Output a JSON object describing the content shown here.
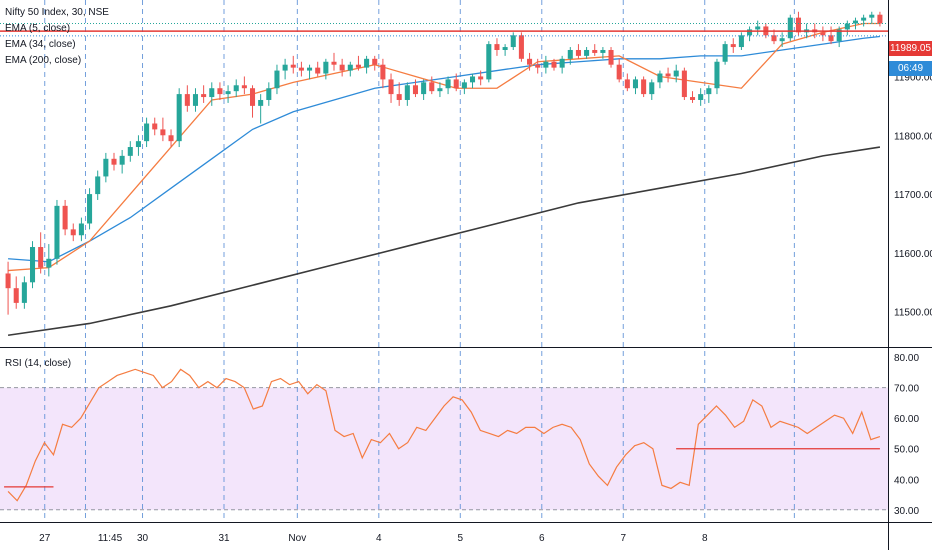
{
  "colors": {
    "up": "#26a69a",
    "down": "#ef5350",
    "ema5": "#f57c41",
    "ema34": "#2e8bd8",
    "ema200": "#3a3a3a",
    "rsi": "#f57c41",
    "rsi_band": "#f3e5fb",
    "grid": "#5b8fd6",
    "hline": "#e53935"
  },
  "legend": {
    "title": "Nifty 50 Index, 30, NSE",
    "ema5": "EMA (5, close)",
    "ema34": "EMA (34, close)",
    "ema200": "EMA (200, close)",
    "rsi": "RSI (14, close)"
  },
  "badges": {
    "price": "11989.05",
    "countdown": "06:49"
  },
  "chart_data": [
    {
      "type": "candlestick",
      "title": "Nifty 50 Index, 30, NSE",
      "y_ticks": [
        11500,
        11600,
        11700,
        11800,
        11900
      ],
      "y_tick_labels": [
        "11500.00",
        "11600.00",
        "11700.00",
        "11800.00",
        "11900.00"
      ],
      "ylim": [
        11440,
        12030
      ],
      "x_ticks": [
        "27",
        "11:45",
        "30",
        "31",
        "Nov",
        "4",
        "5",
        "6",
        "7",
        "8"
      ],
      "candles": [
        [
          11565,
          11585,
          11495,
          11540
        ],
        [
          11540,
          11560,
          11505,
          11515
        ],
        [
          11515,
          11560,
          11505,
          11550
        ],
        [
          11550,
          11620,
          11540,
          11610
        ],
        [
          11610,
          11635,
          11565,
          11575
        ],
        [
          11575,
          11615,
          11560,
          11590
        ],
        [
          11590,
          11690,
          11580,
          11680
        ],
        [
          11680,
          11690,
          11630,
          11640
        ],
        [
          11640,
          11650,
          11620,
          11630
        ],
        [
          11630,
          11660,
          11620,
          11650
        ],
        [
          11650,
          11710,
          11640,
          11700
        ],
        [
          11700,
          11740,
          11690,
          11730
        ],
        [
          11730,
          11770,
          11720,
          11760
        ],
        [
          11760,
          11770,
          11740,
          11750
        ],
        [
          11750,
          11775,
          11735,
          11765
        ],
        [
          11765,
          11790,
          11755,
          11780
        ],
        [
          11780,
          11800,
          11765,
          11790
        ],
        [
          11790,
          11830,
          11780,
          11820
        ],
        [
          11820,
          11830,
          11800,
          11810
        ],
        [
          11810,
          11830,
          11790,
          11800
        ],
        [
          11800,
          11810,
          11780,
          11790
        ],
        [
          11790,
          11880,
          11780,
          11870
        ],
        [
          11870,
          11885,
          11840,
          11850
        ],
        [
          11850,
          11880,
          11840,
          11870
        ],
        [
          11870,
          11885,
          11855,
          11865
        ],
        [
          11865,
          11890,
          11850,
          11880
        ],
        [
          11880,
          11890,
          11860,
          11870
        ],
        [
          11870,
          11885,
          11855,
          11875
        ],
        [
          11875,
          11895,
          11865,
          11885
        ],
        [
          11885,
          11900,
          11870,
          11880
        ],
        [
          11880,
          11885,
          11830,
          11850
        ],
        [
          11850,
          11870,
          11820,
          11860
        ],
        [
          11860,
          11890,
          11850,
          11880
        ],
        [
          11880,
          11920,
          11870,
          11910
        ],
        [
          11910,
          11930,
          11895,
          11920
        ],
        [
          11920,
          11935,
          11905,
          11915
        ],
        [
          11915,
          11925,
          11900,
          11910
        ],
        [
          11910,
          11920,
          11895,
          11915
        ],
        [
          11915,
          11925,
          11900,
          11905
        ],
        [
          11905,
          11930,
          11895,
          11925
        ],
        [
          11925,
          11940,
          11910,
          11920
        ],
        [
          11920,
          11930,
          11900,
          11910
        ],
        [
          11910,
          11925,
          11900,
          11920
        ],
        [
          11920,
          11935,
          11910,
          11915
        ],
        [
          11915,
          11935,
          11905,
          11930
        ],
        [
          11930,
          11935,
          11910,
          11920
        ],
        [
          11920,
          11930,
          11880,
          11895
        ],
        [
          11895,
          11905,
          11855,
          11870
        ],
        [
          11870,
          11890,
          11850,
          11860
        ],
        [
          11860,
          11890,
          11850,
          11885
        ],
        [
          11885,
          11895,
          11865,
          11870
        ],
        [
          11870,
          11895,
          11860,
          11890
        ],
        [
          11890,
          11900,
          11870,
          11875
        ],
        [
          11875,
          11890,
          11865,
          11880
        ],
        [
          11880,
          11900,
          11870,
          11895
        ],
        [
          11895,
          11905,
          11875,
          11880
        ],
        [
          11880,
          11895,
          11870,
          11890
        ],
        [
          11890,
          11905,
          11880,
          11900
        ],
        [
          11900,
          11910,
          11885,
          11895
        ],
        [
          11895,
          11960,
          11890,
          11955
        ],
        [
          11955,
          11965,
          11935,
          11945
        ],
        [
          11945,
          11955,
          11935,
          11950
        ],
        [
          11950,
          11975,
          11945,
          11970
        ],
        [
          11970,
          11975,
          11925,
          11930
        ],
        [
          11930,
          11940,
          11910,
          11920
        ],
        [
          11920,
          11930,
          11905,
          11915
        ],
        [
          11915,
          11935,
          11905,
          11925
        ],
        [
          11925,
          11930,
          11910,
          11915
        ],
        [
          11915,
          11935,
          11905,
          11930
        ],
        [
          11930,
          11950,
          11920,
          11945
        ],
        [
          11945,
          11955,
          11930,
          11935
        ],
        [
          11935,
          11950,
          11930,
          11945
        ],
        [
          11945,
          11955,
          11935,
          11940
        ],
        [
          11940,
          11950,
          11930,
          11945
        ],
        [
          11945,
          11950,
          11915,
          11920
        ],
        [
          11920,
          11930,
          11890,
          11895
        ],
        [
          11895,
          11905,
          11875,
          11880
        ],
        [
          11880,
          11900,
          11870,
          11895
        ],
        [
          11895,
          11900,
          11865,
          11870
        ],
        [
          11870,
          11895,
          11860,
          11890
        ],
        [
          11890,
          11910,
          11880,
          11905
        ],
        [
          11905,
          11915,
          11890,
          11900
        ],
        [
          11900,
          11920,
          11890,
          11910
        ],
        [
          11910,
          11915,
          11860,
          11865
        ],
        [
          11865,
          11875,
          11855,
          11860
        ],
        [
          11860,
          11880,
          11850,
          11870
        ],
        [
          11870,
          11885,
          11855,
          11880
        ],
        [
          11880,
          11930,
          11870,
          11925
        ],
        [
          11925,
          11960,
          11920,
          11955
        ],
        [
          11955,
          11965,
          11940,
          11950
        ],
        [
          11950,
          11975,
          11945,
          11970
        ],
        [
          11970,
          11985,
          11960,
          11980
        ],
        [
          11980,
          11995,
          11970,
          11985
        ],
        [
          11985,
          11990,
          11965,
          11970
        ],
        [
          11970,
          11980,
          11955,
          11960
        ],
        [
          11960,
          11975,
          11950,
          11965
        ],
        [
          11965,
          12005,
          11960,
          12000
        ],
        [
          12000,
          12010,
          11970,
          11975
        ],
        [
          11975,
          11990,
          11965,
          11980
        ],
        [
          11980,
          11990,
          11965,
          11975
        ],
        [
          11975,
          11985,
          11960,
          11970
        ],
        [
          11970,
          11985,
          11955,
          11960
        ],
        [
          11960,
          11985,
          11950,
          11980
        ],
        [
          11980,
          11995,
          11970,
          11990
        ],
        [
          11990,
          12000,
          11980,
          11995
        ],
        [
          11995,
          12005,
          11985,
          12000
        ],
        [
          12000,
          12010,
          11990,
          12005
        ],
        [
          12005,
          12010,
          11985,
          11990
        ]
      ],
      "series": [
        {
          "name": "EMA (5, close)",
          "color": "#f57c41",
          "x": [
            0,
            5,
            10,
            15,
            20,
            25,
            30,
            35,
            40,
            45,
            50,
            55,
            60,
            65,
            70,
            75,
            80,
            85,
            90,
            95,
            100,
            105,
            107
          ],
          "values": [
            11570,
            11575,
            11620,
            11700,
            11780,
            11860,
            11870,
            11890,
            11905,
            11920,
            11900,
            11880,
            11880,
            11925,
            11930,
            11935,
            11900,
            11890,
            11880,
            11955,
            11975,
            11990,
            11990
          ]
        },
        {
          "name": "EMA (34, close)",
          "color": "#2e8bd8",
          "x": [
            0,
            5,
            10,
            15,
            20,
            25,
            30,
            35,
            40,
            45,
            50,
            55,
            60,
            65,
            70,
            75,
            80,
            85,
            90,
            95,
            100,
            105,
            107
          ],
          "values": [
            11590,
            11585,
            11620,
            11660,
            11710,
            11760,
            11810,
            11840,
            11860,
            11880,
            11890,
            11900,
            11910,
            11920,
            11925,
            11930,
            11930,
            11935,
            11935,
            11945,
            11955,
            11965,
            11968
          ]
        },
        {
          "name": "EMA (200, close)",
          "color": "#3a3a3a",
          "x": [
            0,
            10,
            20,
            30,
            40,
            50,
            60,
            70,
            80,
            90,
            100,
            107
          ],
          "values": [
            11460,
            11480,
            11510,
            11545,
            11580,
            11615,
            11650,
            11685,
            11710,
            11735,
            11765,
            11780
          ]
        }
      ],
      "hlines": [
        {
          "value": 11977,
          "color": "#e53935"
        }
      ]
    },
    {
      "type": "line",
      "title": "RSI (14, close)",
      "y_ticks": [
        30,
        40,
        50,
        60,
        70,
        80
      ],
      "y_tick_labels": [
        "30.00",
        "40.00",
        "50.00",
        "60.00",
        "70.00",
        "80.00"
      ],
      "ylim": [
        26,
        83
      ],
      "band": [
        30,
        70
      ],
      "series": [
        {
          "name": "RSI (14, close)",
          "color": "#f57c41",
          "values": [
            36,
            33,
            38,
            46,
            52,
            48,
            58,
            57,
            60,
            65,
            70,
            72,
            74,
            75,
            76,
            75,
            74,
            70,
            72,
            76,
            74,
            70,
            72,
            70,
            73,
            72,
            70,
            63,
            64,
            72,
            73,
            71,
            72,
            68,
            71,
            69,
            56,
            54,
            55,
            47,
            53,
            52,
            55,
            50,
            52,
            57,
            56,
            60,
            64,
            67,
            66,
            62,
            56,
            55,
            54,
            56,
            55,
            57,
            57,
            55,
            57,
            58,
            57,
            53,
            45,
            41,
            38,
            44,
            48,
            51,
            52,
            50,
            38,
            37,
            39,
            38,
            58,
            61,
            64,
            61,
            57,
            59,
            66,
            64,
            57,
            59,
            58,
            57,
            55,
            57,
            59,
            61,
            60,
            55,
            62,
            53,
            54
          ]
        },
        {
          "name": "",
          "color": "#f57c41",
          "x": [
            0,
            98
          ],
          "values": [
            null,
            null
          ]
        }
      ],
      "hlines": [
        {
          "value": 37.5,
          "x_from": 0,
          "x_to": 5,
          "color": "#e53935"
        },
        {
          "value": 50,
          "x_from": 74,
          "x_to": 96,
          "color": "#e53935"
        }
      ]
    }
  ]
}
